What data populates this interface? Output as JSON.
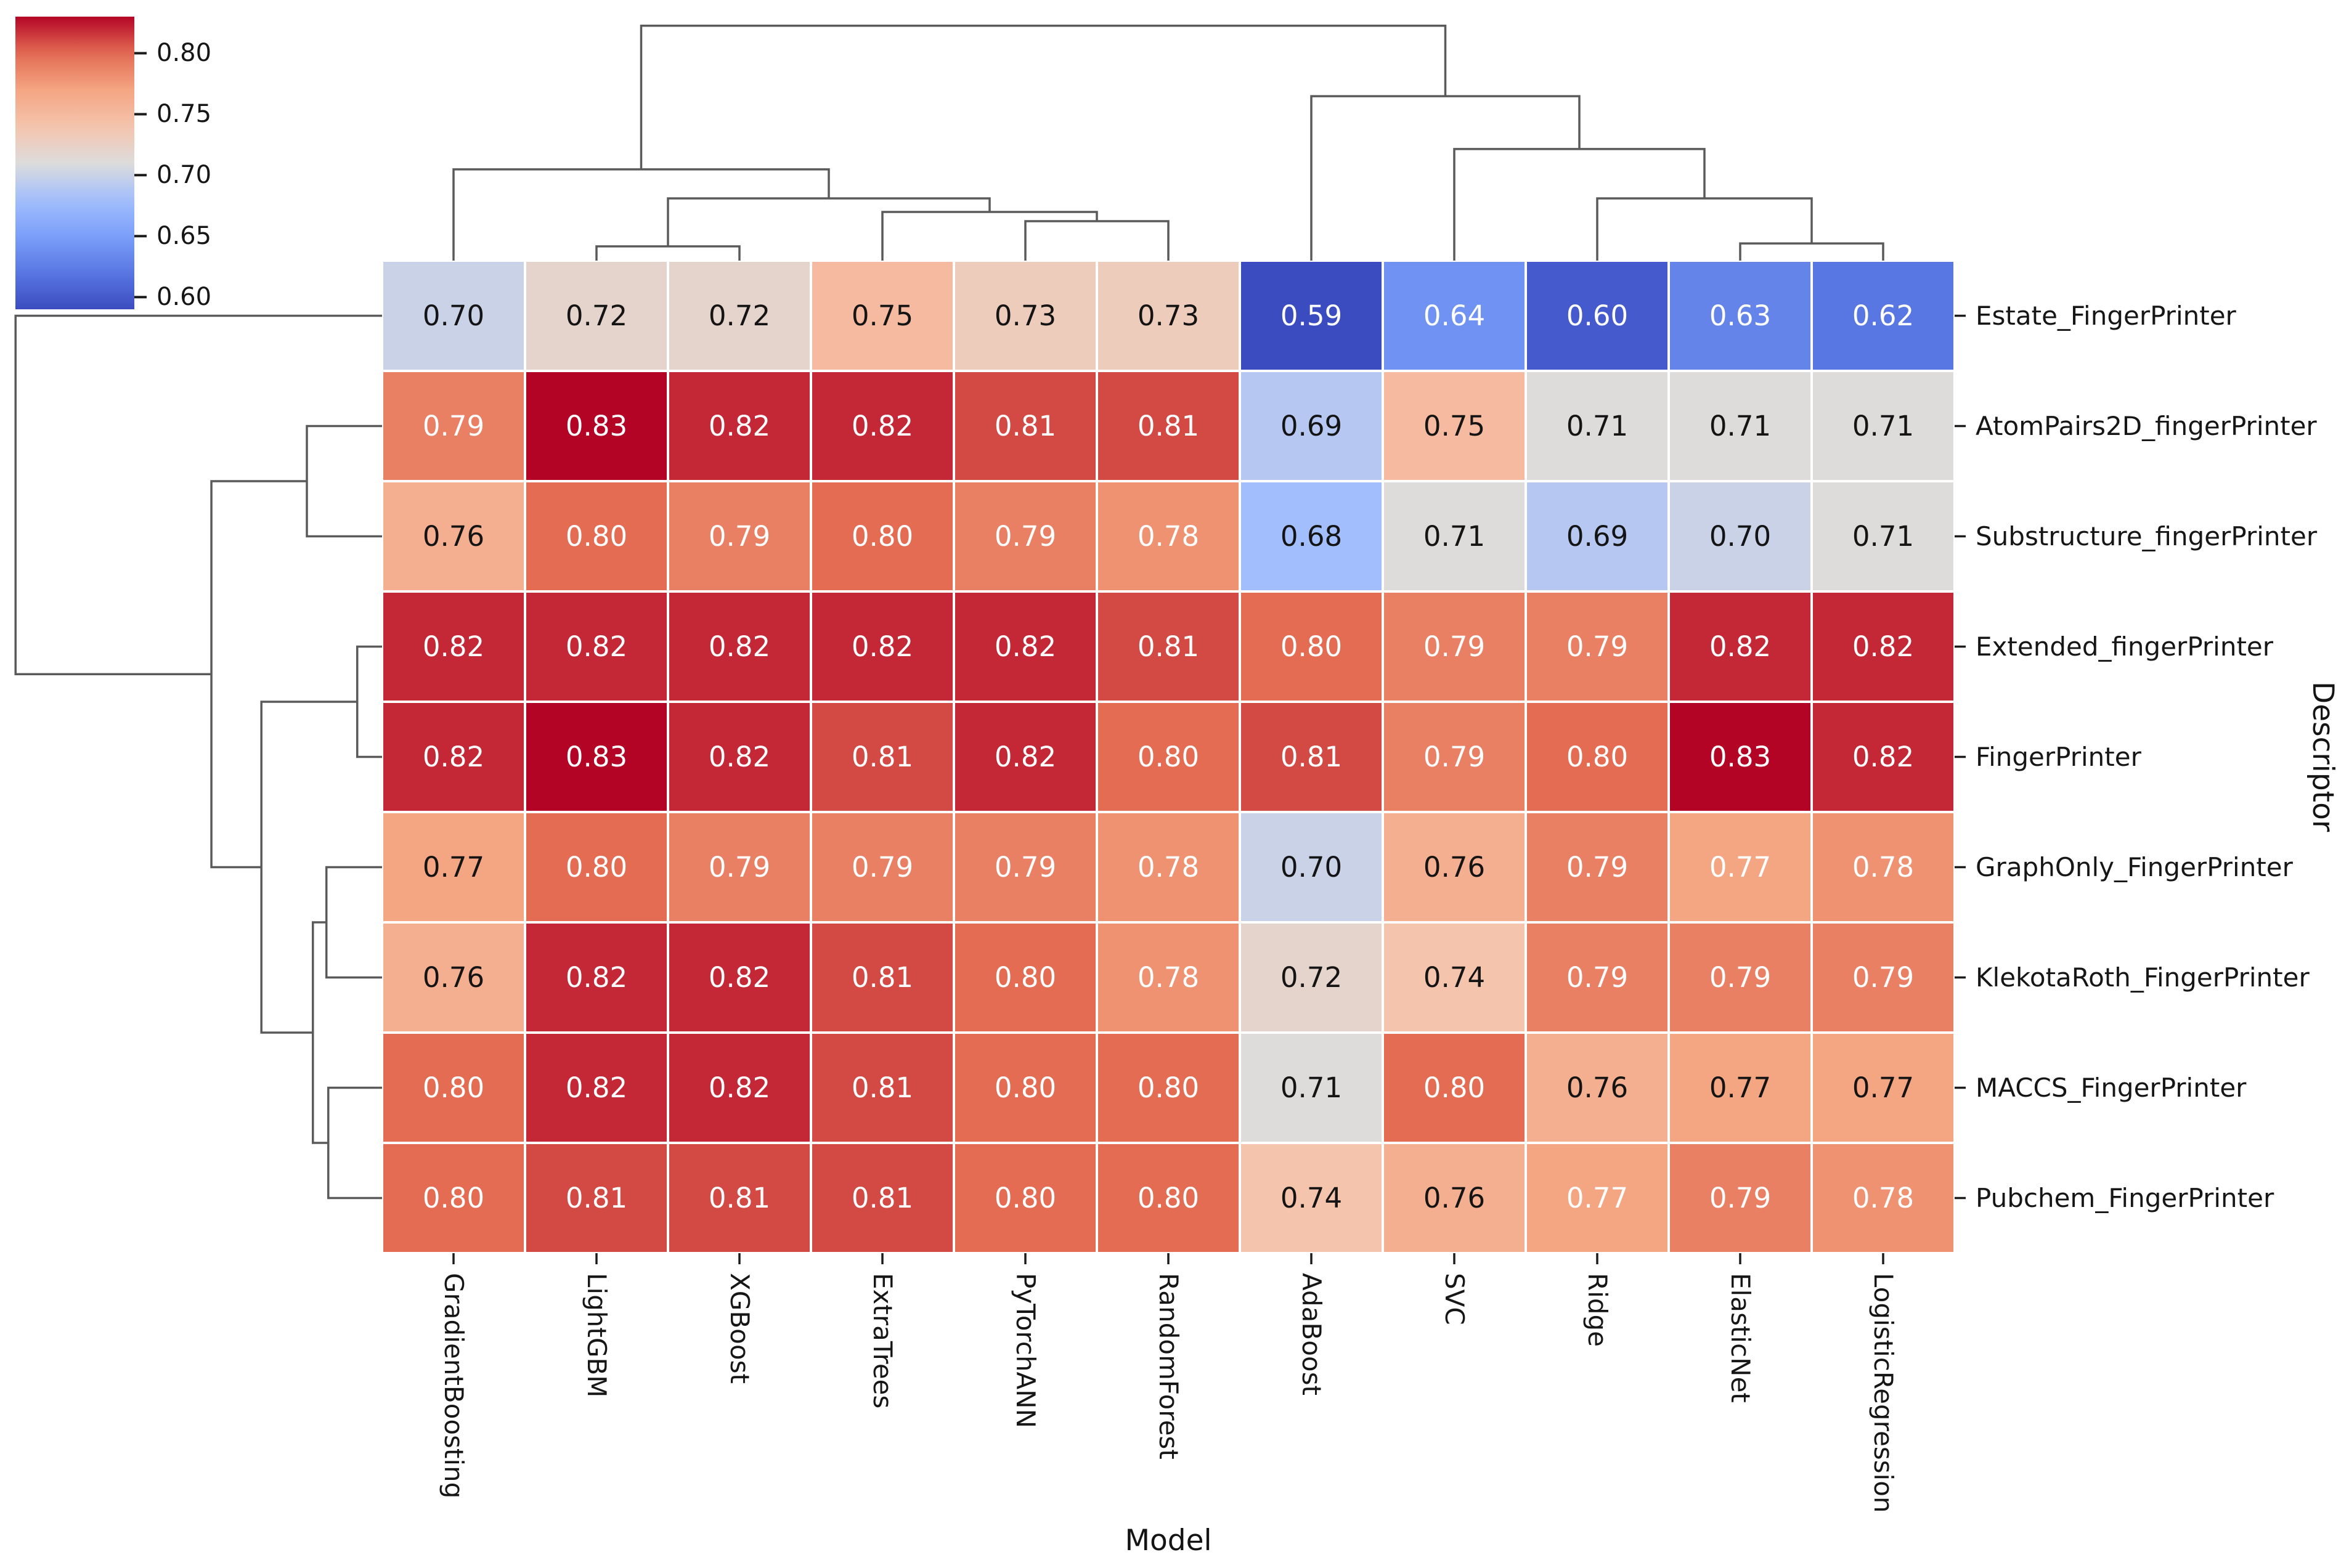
{
  "chart_data": {
    "type": "heatmap",
    "subtype": "clustermap-with-dendrograms",
    "title": "",
    "xlabel": "Model",
    "ylabel": "Descriptor",
    "columns": [
      "GradientBoosting",
      "LightGBM",
      "XGBoost",
      "ExtraTrees",
      "PyTorchANN",
      "RandomForest",
      "AdaBoost",
      "SVC",
      "Ridge",
      "ElasticNet",
      "LogisticRegression"
    ],
    "rows": [
      "Estate_FingerPrinter",
      "AtomPairs2D_fingerPrinter",
      "Substructure_fingerPrinter",
      "Extended_fingerPrinter",
      "FingerPrinter",
      "GraphOnly_FingerPrinter",
      "KlekotaRoth_FingerPrinter",
      "MACCS_FingerPrinter",
      "Pubchem_FingerPrinter"
    ],
    "values": [
      [
        0.7,
        0.72,
        0.72,
        0.75,
        0.73,
        0.73,
        0.59,
        0.64,
        0.6,
        0.63,
        0.62
      ],
      [
        0.79,
        0.83,
        0.82,
        0.82,
        0.81,
        0.81,
        0.69,
        0.75,
        0.71,
        0.71,
        0.71
      ],
      [
        0.76,
        0.8,
        0.79,
        0.8,
        0.79,
        0.78,
        0.68,
        0.71,
        0.69,
        0.7,
        0.71
      ],
      [
        0.82,
        0.82,
        0.82,
        0.82,
        0.82,
        0.81,
        0.8,
        0.79,
        0.79,
        0.82,
        0.82
      ],
      [
        0.82,
        0.83,
        0.82,
        0.81,
        0.82,
        0.8,
        0.81,
        0.79,
        0.8,
        0.83,
        0.82
      ],
      [
        0.77,
        0.8,
        0.79,
        0.79,
        0.79,
        0.78,
        0.7,
        0.76,
        0.79,
        0.77,
        0.78
      ],
      [
        0.76,
        0.82,
        0.82,
        0.81,
        0.8,
        0.78,
        0.72,
        0.74,
        0.79,
        0.79,
        0.79
      ],
      [
        0.8,
        0.82,
        0.82,
        0.81,
        0.8,
        0.8,
        0.71,
        0.8,
        0.76,
        0.77,
        0.77
      ],
      [
        0.8,
        0.81,
        0.81,
        0.81,
        0.8,
        0.8,
        0.74,
        0.76,
        0.77,
        0.79,
        0.78
      ]
    ],
    "annotation_text_colors": [
      [
        "k",
        "k",
        "k",
        "k",
        "k",
        "k",
        "w",
        "w",
        "w",
        "w",
        "w"
      ],
      [
        "w",
        "w",
        "w",
        "w",
        "w",
        "w",
        "k",
        "k",
        "k",
        "k",
        "k"
      ],
      [
        "k",
        "w",
        "w",
        "w",
        "w",
        "w",
        "k",
        "k",
        "k",
        "k",
        "k"
      ],
      [
        "w",
        "w",
        "w",
        "w",
        "w",
        "w",
        "w",
        "w",
        "w",
        "w",
        "w"
      ],
      [
        "w",
        "w",
        "w",
        "w",
        "w",
        "w",
        "w",
        "w",
        "w",
        "w",
        "w"
      ],
      [
        "k",
        "w",
        "w",
        "w",
        "w",
        "w",
        "k",
        "k",
        "w",
        "w",
        "w"
      ],
      [
        "k",
        "w",
        "w",
        "w",
        "w",
        "w",
        "k",
        "k",
        "w",
        "w",
        "w"
      ],
      [
        "w",
        "w",
        "w",
        "w",
        "w",
        "w",
        "k",
        "w",
        "k",
        "k",
        "k"
      ],
      [
        "w",
        "w",
        "w",
        "w",
        "w",
        "w",
        "k",
        "k",
        "w",
        "w",
        "w"
      ]
    ],
    "annotation_format": "0.00",
    "colormap": "coolwarm",
    "colormap_anchors": [
      [
        0.0,
        "#3B4CC0"
      ],
      [
        0.125,
        "#5977E3"
      ],
      [
        0.25,
        "#7B9FF9"
      ],
      [
        0.375,
        "#A2BEFD"
      ],
      [
        0.5,
        "#DDDCDB"
      ],
      [
        0.625,
        "#F5C4AD"
      ],
      [
        0.75,
        "#F4A582"
      ],
      [
        0.875,
        "#E36C53"
      ],
      [
        1.0,
        "#B40426"
      ]
    ],
    "vmin": 0.59,
    "vmax": 0.83,
    "colorbar_ticks": [
      "0.80",
      "0.75",
      "0.70",
      "0.65",
      "0.60"
    ],
    "colorbar_tick_values": [
      0.8,
      0.75,
      0.7,
      0.65,
      0.6
    ],
    "grid": false,
    "colorbar_position": "top-left",
    "col_dendrogram_merges": [
      {
        "a": "L1",
        "b": "L2",
        "h": 0.059
      },
      {
        "a": "L4",
        "b": "L5",
        "h": 0.163
      },
      {
        "a": "L3",
        "b": "M1",
        "h": 0.201
      },
      {
        "a": "M0",
        "b": "M2",
        "h": 0.257
      },
      {
        "a": "L0",
        "b": "M3",
        "h": 0.377
      },
      {
        "a": "L9",
        "b": "L10",
        "h": 0.071
      },
      {
        "a": "L8",
        "b": "M5",
        "h": 0.257
      },
      {
        "a": "L7",
        "b": "M6",
        "h": 0.461
      },
      {
        "a": "L6",
        "b": "M7",
        "h": 0.679
      },
      {
        "a": "M4",
        "b": "M8",
        "h": 0.97
      }
    ],
    "row_dendrogram_merges": [
      {
        "a": "L3",
        "b": "L4",
        "h": 0.066
      },
      {
        "a": "L5",
        "b": "L6",
        "h": 0.148
      },
      {
        "a": "L7",
        "b": "L8",
        "h": 0.143
      },
      {
        "a": "M1",
        "b": "M2",
        "h": 0.184
      },
      {
        "a": "M0",
        "b": "M3",
        "h": 0.321
      },
      {
        "a": "L1",
        "b": "L2",
        "h": 0.2
      },
      {
        "a": "M5",
        "b": "M4",
        "h": 0.454
      },
      {
        "a": "L0",
        "b": "M6",
        "h": 0.975
      }
    ],
    "dendrogram_line_color": "#5a5a5a",
    "tick_color": "#1c1c1c"
  }
}
